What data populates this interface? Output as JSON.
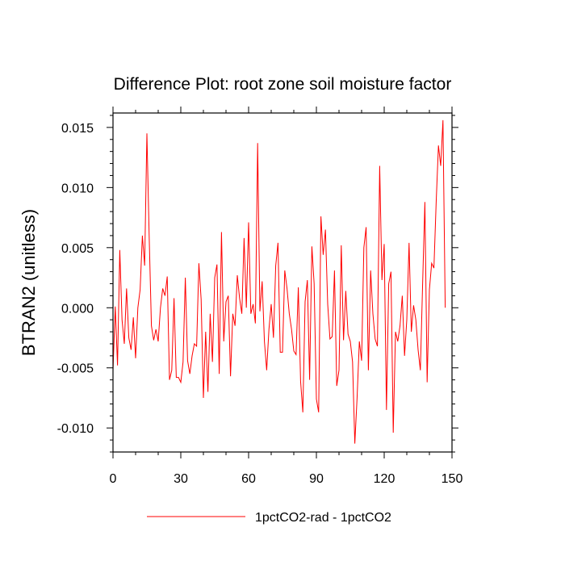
{
  "chart_data": {
    "type": "line",
    "title": "Difference Plot: root zone soil moisture factor",
    "xlabel": "",
    "ylabel": "BTRAN2  (unitless)",
    "xlim": [
      0,
      150
    ],
    "ylim": [
      -0.012,
      0.0162
    ],
    "x_ticks": [
      0,
      30,
      60,
      90,
      120,
      150
    ],
    "x_tick_labels": [
      "0",
      "30",
      "60",
      "90",
      "120",
      "150"
    ],
    "y_ticks": [
      -0.01,
      -0.005,
      0.0,
      0.005,
      0.01,
      0.015
    ],
    "y_tick_labels": [
      "-0.010",
      "-0.005",
      "0.000",
      "0.005",
      "0.010",
      "0.015"
    ],
    "grid": false,
    "legend_position": "bottom",
    "series": [
      {
        "name": "1pctCO2-rad - 1pctCO2",
        "color": "#ff0000",
        "x_start": 0,
        "x_step": 1,
        "values": [
          -0.0052,
          0.0001,
          -0.0048,
          0.0048,
          -0.001,
          -0.003,
          0.0016,
          -0.0025,
          -0.0035,
          -0.0008,
          -0.0042,
          0.0,
          0.0015,
          0.006,
          0.0035,
          0.0145,
          0.006,
          -0.0015,
          -0.0027,
          -0.0018,
          -0.0028,
          0.0,
          0.0016,
          0.001,
          0.0026,
          -0.006,
          -0.0052,
          0.0008,
          -0.0058,
          -0.0058,
          -0.0062,
          -0.0045,
          0.0025,
          -0.0044,
          -0.0055,
          -0.004,
          -0.003,
          -0.0032,
          0.0037,
          0.0007,
          -0.0075,
          -0.002,
          -0.007,
          -0.0005,
          -0.0045,
          0.0025,
          0.0036,
          -0.0055,
          0.0063,
          -0.0028,
          0.0005,
          0.001,
          -0.0057,
          -0.0005,
          -0.0015,
          0.0027,
          0.0008,
          -0.0005,
          0.0058,
          0.0,
          0.0071,
          -0.0005,
          0.0003,
          -0.0013,
          0.0137,
          -0.0003,
          0.0022,
          -0.0028,
          -0.0052,
          -0.0018,
          0.0003,
          -0.0025,
          0.0035,
          0.0054,
          -0.0037,
          -0.0037,
          0.0031,
          0.0016,
          -0.0005,
          -0.0018,
          -0.0036,
          -0.0039,
          0.0017,
          -0.0061,
          -0.0087,
          0.0005,
          0.0023,
          -0.006,
          0.0051,
          0.002,
          -0.0076,
          -0.0087,
          0.0076,
          0.0044,
          0.0065,
          0.0003,
          -0.0026,
          -0.0024,
          0.0031,
          -0.0065,
          -0.0052,
          0.0052,
          -0.0027,
          0.0014,
          -0.0022,
          -0.0028,
          -0.0045,
          -0.0113,
          -0.0075,
          -0.0028,
          -0.0044,
          0.005,
          0.0067,
          -0.0052,
          0.0031,
          -0.0005,
          -0.0026,
          -0.0032,
          0.0118,
          0.0023,
          0.0053,
          -0.0085,
          0.002,
          0.003,
          -0.0104,
          -0.002,
          -0.0028,
          -0.0015,
          0.001,
          -0.004,
          -0.001,
          0.0054,
          -0.002,
          0.0002,
          -0.001,
          -0.0035,
          -0.0052,
          0.002,
          0.0088,
          -0.0062,
          0.0015,
          0.0037,
          0.0033,
          0.0088,
          0.0135,
          0.0118,
          0.0156,
          0.0
        ]
      }
    ]
  }
}
